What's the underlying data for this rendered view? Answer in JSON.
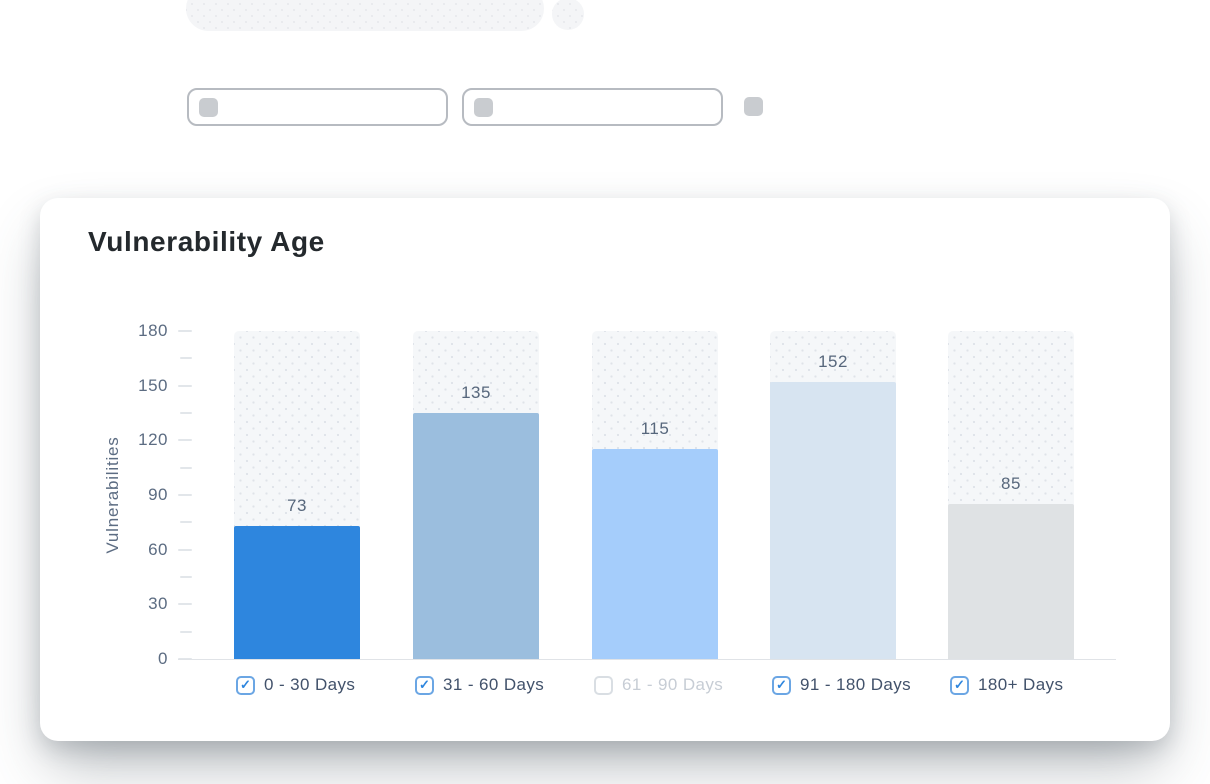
{
  "card": {
    "title": "Vulnerability Age"
  },
  "chart_data": {
    "type": "bar",
    "title": "Vulnerability Age",
    "xlabel": "",
    "ylabel": "Vulnerabilities",
    "ylim": [
      0,
      180
    ],
    "ytick_step": 30,
    "minor_tick_step": 15,
    "grid": false,
    "legend_position": "bottom",
    "categories": [
      "0 - 30 Days",
      "31 - 60 Days",
      "61 - 90 Days",
      "91 - 180 Days",
      "180+ Days"
    ],
    "values": [
      73,
      135,
      115,
      152,
      85
    ],
    "bar_colors": [
      "#2e86de",
      "#9bbede",
      "#a5cdfb",
      "#d7e4f1",
      "#dfe2e4"
    ],
    "legend": [
      {
        "label": "0 - 30 Days",
        "checked": true
      },
      {
        "label": "31 - 60 Days",
        "checked": true
      },
      {
        "label": "61 - 90 Days",
        "checked": false
      },
      {
        "label": "91 - 180 Days",
        "checked": true
      },
      {
        "label": "180+ Days",
        "checked": true
      }
    ],
    "check_glyph": "✓"
  },
  "colors": {
    "accent": "#2e86de",
    "axis_text": "#5c6c82",
    "value_label": "#57677c",
    "track": "#f5f7f9"
  }
}
